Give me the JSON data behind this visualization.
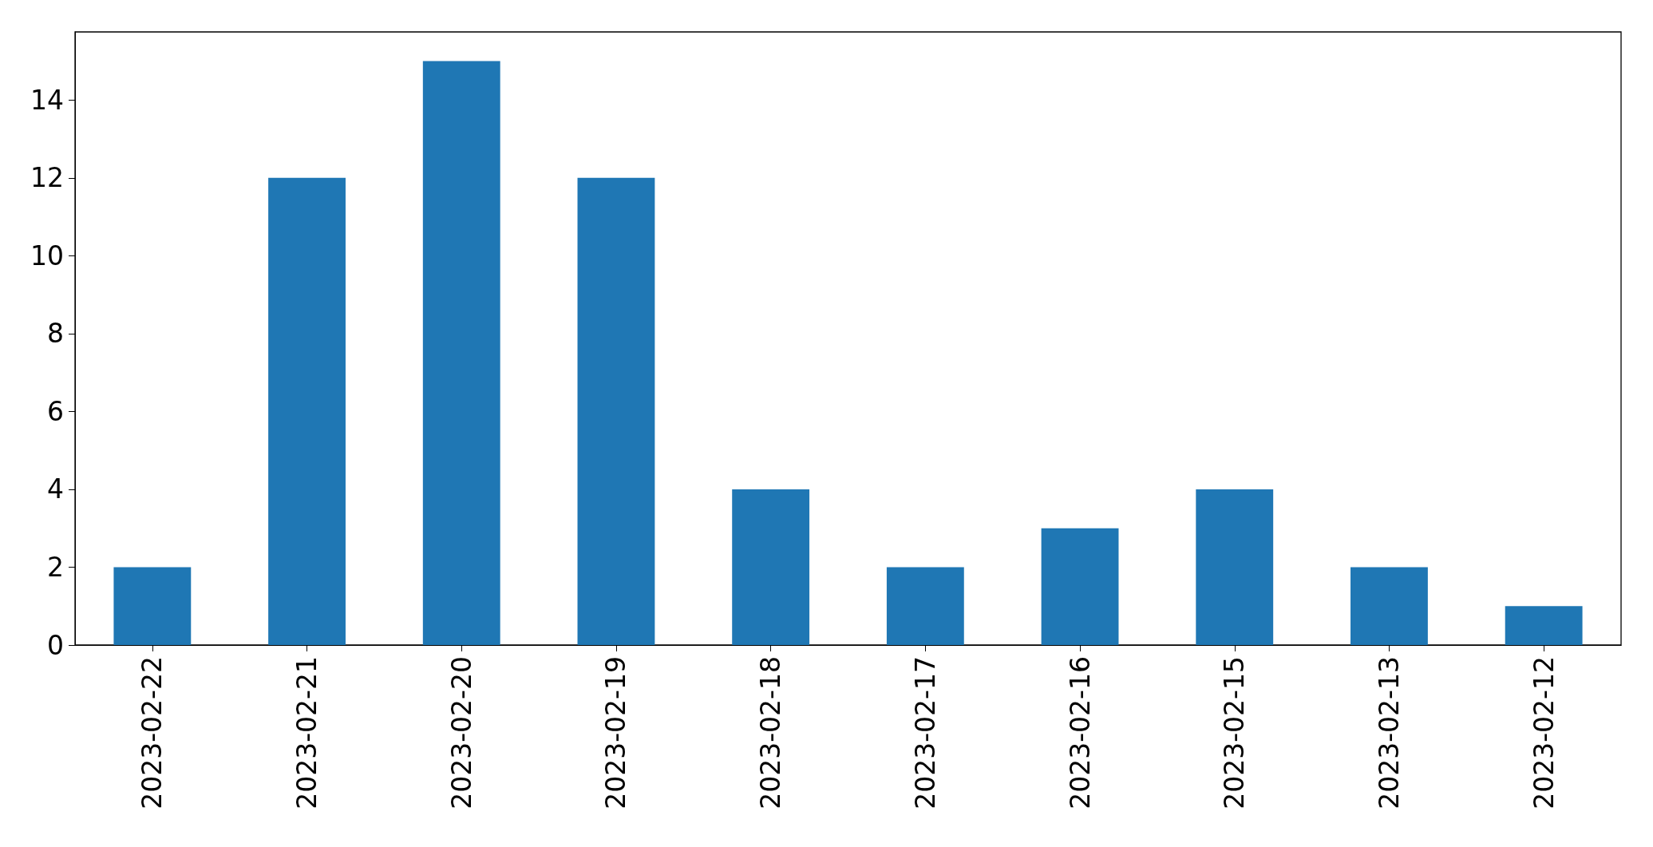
{
  "chart_data": {
    "type": "bar",
    "categories": [
      "2023-02-22",
      "2023-02-21",
      "2023-02-20",
      "2023-02-19",
      "2023-02-18",
      "2023-02-17",
      "2023-02-16",
      "2023-02-15",
      "2023-02-13",
      "2023-02-12"
    ],
    "values": [
      2,
      12,
      15,
      12,
      4,
      2,
      3,
      4,
      2,
      1
    ],
    "color": "#1f77b4",
    "ylim": [
      0,
      15.75
    ],
    "yticks": [
      0,
      2,
      4,
      6,
      8,
      10,
      12,
      14
    ],
    "grid": false
  }
}
